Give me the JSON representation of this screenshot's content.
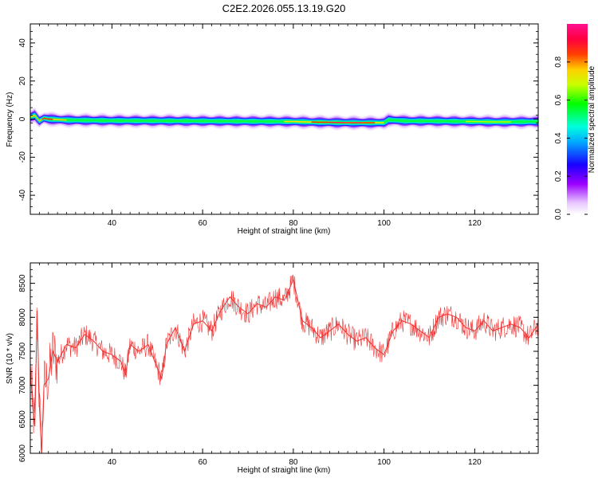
{
  "figure": {
    "title": "C2E2.2026.055.13.19.G20"
  },
  "chart_data": [
    {
      "type": "heatmap",
      "xlabel": "Height of straight line (km)",
      "ylabel": "Frequency (Hz)",
      "xlim": [
        22,
        134
      ],
      "ylim": [
        -50,
        50
      ],
      "x_ticks": [
        40,
        60,
        80,
        100,
        120
      ],
      "y_ticks": [
        40,
        20,
        0,
        -20,
        -40
      ],
      "grid": false,
      "colorbar": {
        "label": "Normalized spectral amplitude",
        "ticks": [
          0.0,
          0.2,
          0.4,
          0.6,
          0.8
        ],
        "range": [
          0,
          1
        ],
        "colors": [
          "#ffffff",
          "#a000ff",
          "#0000ff",
          "#00ffff",
          "#00ff00",
          "#ffff00",
          "#ff0000",
          "#ff00a0"
        ]
      },
      "signal_center_hz": [
        [
          22,
          1.0
        ],
        [
          23,
          2.0
        ],
        [
          24,
          -1.0
        ],
        [
          25,
          0.5
        ],
        [
          26,
          0.0
        ],
        [
          30,
          -0.5
        ],
        [
          40,
          -0.8
        ],
        [
          60,
          -1.0
        ],
        [
          80,
          -1.3
        ],
        [
          85,
          -1.6
        ],
        [
          90,
          -1.8
        ],
        [
          95,
          -1.9
        ],
        [
          100,
          -1.9
        ],
        [
          101,
          -0.4
        ],
        [
          105,
          -1.0
        ],
        [
          110,
          -1.0
        ],
        [
          120,
          -1.3
        ],
        [
          125,
          -1.5
        ],
        [
          134,
          -1.3
        ]
      ]
    },
    {
      "type": "line",
      "xlabel": "Height of straight line (km)",
      "ylabel": "SNR (10 * v/v)",
      "xlim": [
        22,
        134
      ],
      "ylim": [
        6000,
        8800
      ],
      "x_ticks": [
        40,
        60,
        80,
        100,
        120
      ],
      "y_ticks": [
        8500,
        8000,
        7500,
        7000,
        6500,
        6000
      ],
      "grid": false,
      "series": [
        {
          "color": "#ee3333",
          "x": [
            22,
            22.5,
            23,
            23.5,
            24,
            24.5,
            25,
            26,
            27,
            28,
            30,
            32,
            34,
            36,
            38,
            40,
            42,
            43,
            44,
            46,
            48,
            50,
            51,
            52,
            54,
            56,
            58,
            60,
            62,
            64,
            66,
            68,
            70,
            72,
            74,
            76,
            78,
            80,
            82,
            84,
            86,
            88,
            90,
            92,
            94,
            96,
            98,
            100,
            102,
            104,
            106,
            108,
            110,
            112,
            114,
            116,
            118,
            120,
            122,
            124,
            126,
            128,
            130,
            132,
            134
          ],
          "y": [
            7300,
            6700,
            6400,
            8100,
            6700,
            6000,
            7000,
            7100,
            7500,
            7350,
            7600,
            7550,
            7750,
            7650,
            7500,
            7450,
            7350,
            7150,
            7600,
            7500,
            7600,
            7250,
            7100,
            7600,
            7850,
            7500,
            7900,
            7950,
            7800,
            8100,
            8300,
            8150,
            8050,
            8200,
            8150,
            8300,
            8250,
            8550,
            7950,
            7850,
            7700,
            7800,
            7900,
            7750,
            7650,
            7700,
            7550,
            7450,
            7800,
            7950,
            7900,
            7800,
            7700,
            8000,
            8050,
            8000,
            7850,
            7800,
            7950,
            7800,
            7850,
            7900,
            7850,
            7700,
            7900
          ]
        }
      ]
    }
  ]
}
